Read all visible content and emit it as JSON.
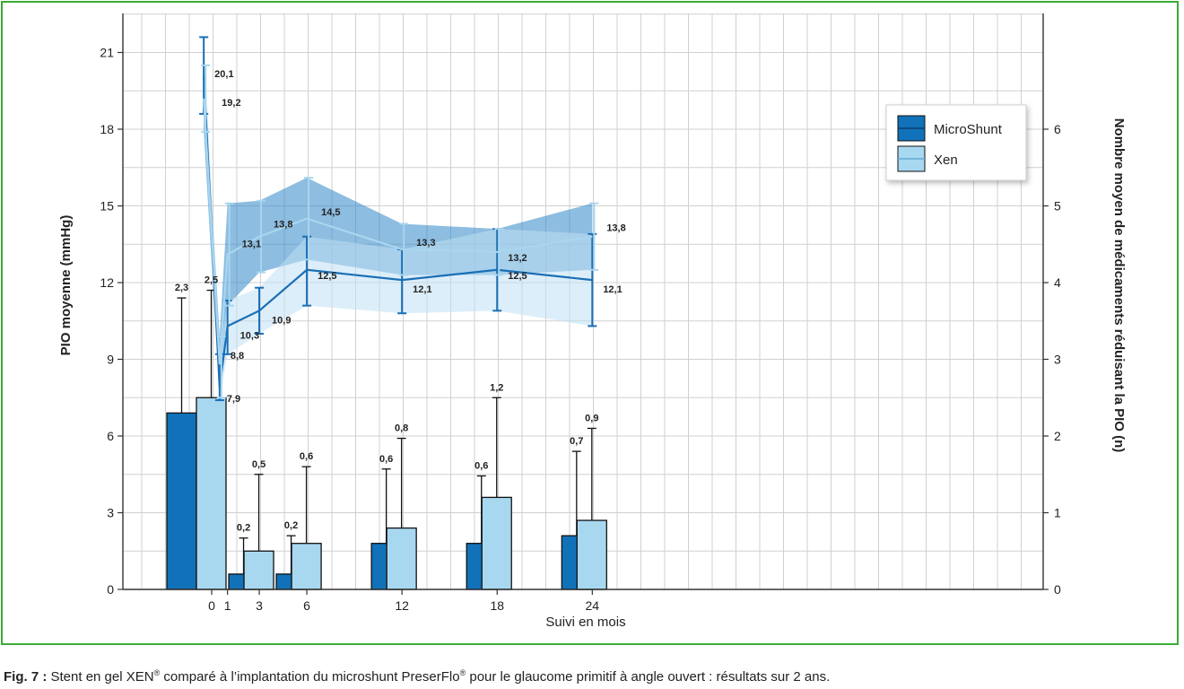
{
  "caption": {
    "label": "Fig. 7 :",
    "text_1": " Stent en gel XEN",
    "sup_1": "®",
    "text_2": " comparé à l’implantation du microshunt PreserFlo",
    "sup_2": "®",
    "text_3": " pour le glaucome primitif à angle ouvert : résultats sur 2 ans."
  },
  "colors": {
    "frame": "#3aaa35",
    "microshunt": "#1a6fb5",
    "microshunt_bar": "#1172b9",
    "xen": "#a8d8f0",
    "xen_line": "#a9d6ee"
  },
  "chart_data": {
    "type": "line+bar",
    "x_ticks": [
      "0",
      "1",
      "3",
      "6",
      "12",
      "18",
      "24"
    ],
    "xlabel": "Suivi en mois",
    "ylabel": "PIO moyenne (mmHg)",
    "y2label": "Nombre moyen de médicaments réduisant la PIO (n)",
    "ylim": [
      0,
      21
    ],
    "y_ticks": [
      0,
      3,
      6,
      9,
      12,
      15,
      18,
      21
    ],
    "y2lim": [
      0,
      7
    ],
    "y2_ticks": [
      0,
      1,
      2,
      3,
      4,
      5,
      6
    ],
    "grid": true,
    "legend": {
      "position": "top-right",
      "entries": [
        "MicroShunt",
        "Xen"
      ]
    },
    "iop_series": [
      {
        "name": "MicroShunt",
        "x": [
          -0.5,
          0.5,
          1,
          3,
          6,
          12,
          18,
          24
        ],
        "values": [
          20.1,
          7.9,
          10.3,
          10.9,
          12.5,
          12.1,
          12.5,
          12.1
        ],
        "upper": [
          21.6,
          9.2,
          11.3,
          11.8,
          13.8,
          13.3,
          14.1,
          13.9
        ],
        "lower": [
          18.6,
          7.4,
          9.2,
          10.0,
          11.1,
          10.8,
          10.9,
          10.3
        ],
        "labels": [
          "20,1",
          "7,9",
          "10,3",
          "10,9",
          "12,5",
          "12,1",
          "12,5",
          "12,1"
        ]
      },
      {
        "name": "Xen",
        "x": [
          -0.5,
          0.5,
          1,
          3,
          6,
          12,
          18,
          24
        ],
        "values": [
          19.2,
          8.8,
          13.1,
          13.8,
          14.5,
          13.3,
          13.2,
          13.8
        ],
        "upper": [
          20.5,
          9.9,
          15.1,
          15.2,
          16.1,
          14.3,
          14.1,
          15.1
        ],
        "lower": [
          17.9,
          7.5,
          11.1,
          12.4,
          12.9,
          12.3,
          12.3,
          12.5
        ],
        "labels": [
          "19,2",
          "8,8",
          "13,1",
          "13,8",
          "14,5",
          "13,3",
          "13,2",
          "13,8"
        ]
      }
    ],
    "med_series": [
      {
        "name": "MicroShunt",
        "x": [
          -1,
          3,
          6,
          12,
          18,
          24
        ],
        "values": [
          2.3,
          0.2,
          0.2,
          0.6,
          0.6,
          0.7
        ],
        "error_top": [
          3.8,
          0.67,
          0.7,
          1.57,
          1.48,
          1.8
        ],
        "labels": [
          "2,3",
          "0,2",
          "0,2",
          "0,6",
          "0,6",
          "0,7"
        ]
      },
      {
        "name": "Xen",
        "x": [
          0,
          3,
          6,
          12,
          18,
          24
        ],
        "values": [
          2.5,
          0.5,
          0.6,
          0.8,
          1.2,
          0.9
        ],
        "error_top": [
          3.9,
          1.5,
          1.6,
          1.97,
          2.5,
          2.1
        ],
        "labels": [
          "2,5",
          "0,5",
          "0,6",
          "0,8",
          "1,2",
          "0,9"
        ]
      }
    ]
  }
}
